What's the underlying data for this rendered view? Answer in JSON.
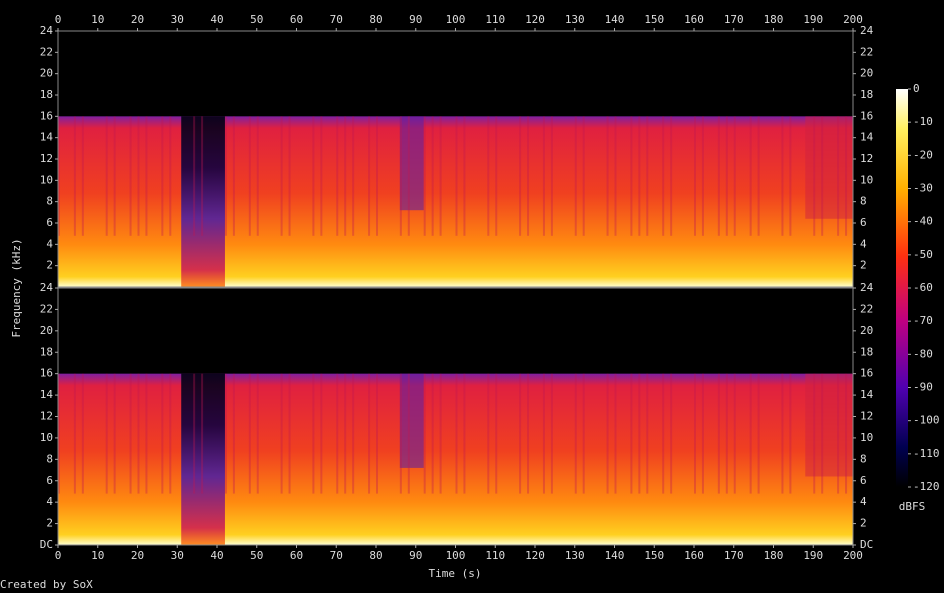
{
  "chart_data": {
    "type": "spectrogram",
    "x_label": "Time (s)",
    "y_label": "Frequency (kHz)",
    "xlim": [
      0,
      200
    ],
    "xticks": [
      0,
      10,
      20,
      30,
      40,
      50,
      60,
      70,
      80,
      90,
      100,
      110,
      120,
      130,
      140,
      150,
      160,
      170,
      180,
      190,
      200
    ],
    "ylim": [
      0,
      24
    ],
    "yticks": [
      {
        "value": 0,
        "label": "DC"
      },
      2,
      4,
      6,
      8,
      10,
      12,
      14,
      16,
      18,
      20,
      22,
      24
    ],
    "colorbar": {
      "label": "dBFS",
      "lim": [
        -120,
        0
      ],
      "ticks": [
        0,
        -10,
        -20,
        -30,
        -40,
        -50,
        -60,
        -70,
        -80,
        -90,
        -100,
        -110,
        -120
      ]
    },
    "footer": "Created by SoX"
  }
}
